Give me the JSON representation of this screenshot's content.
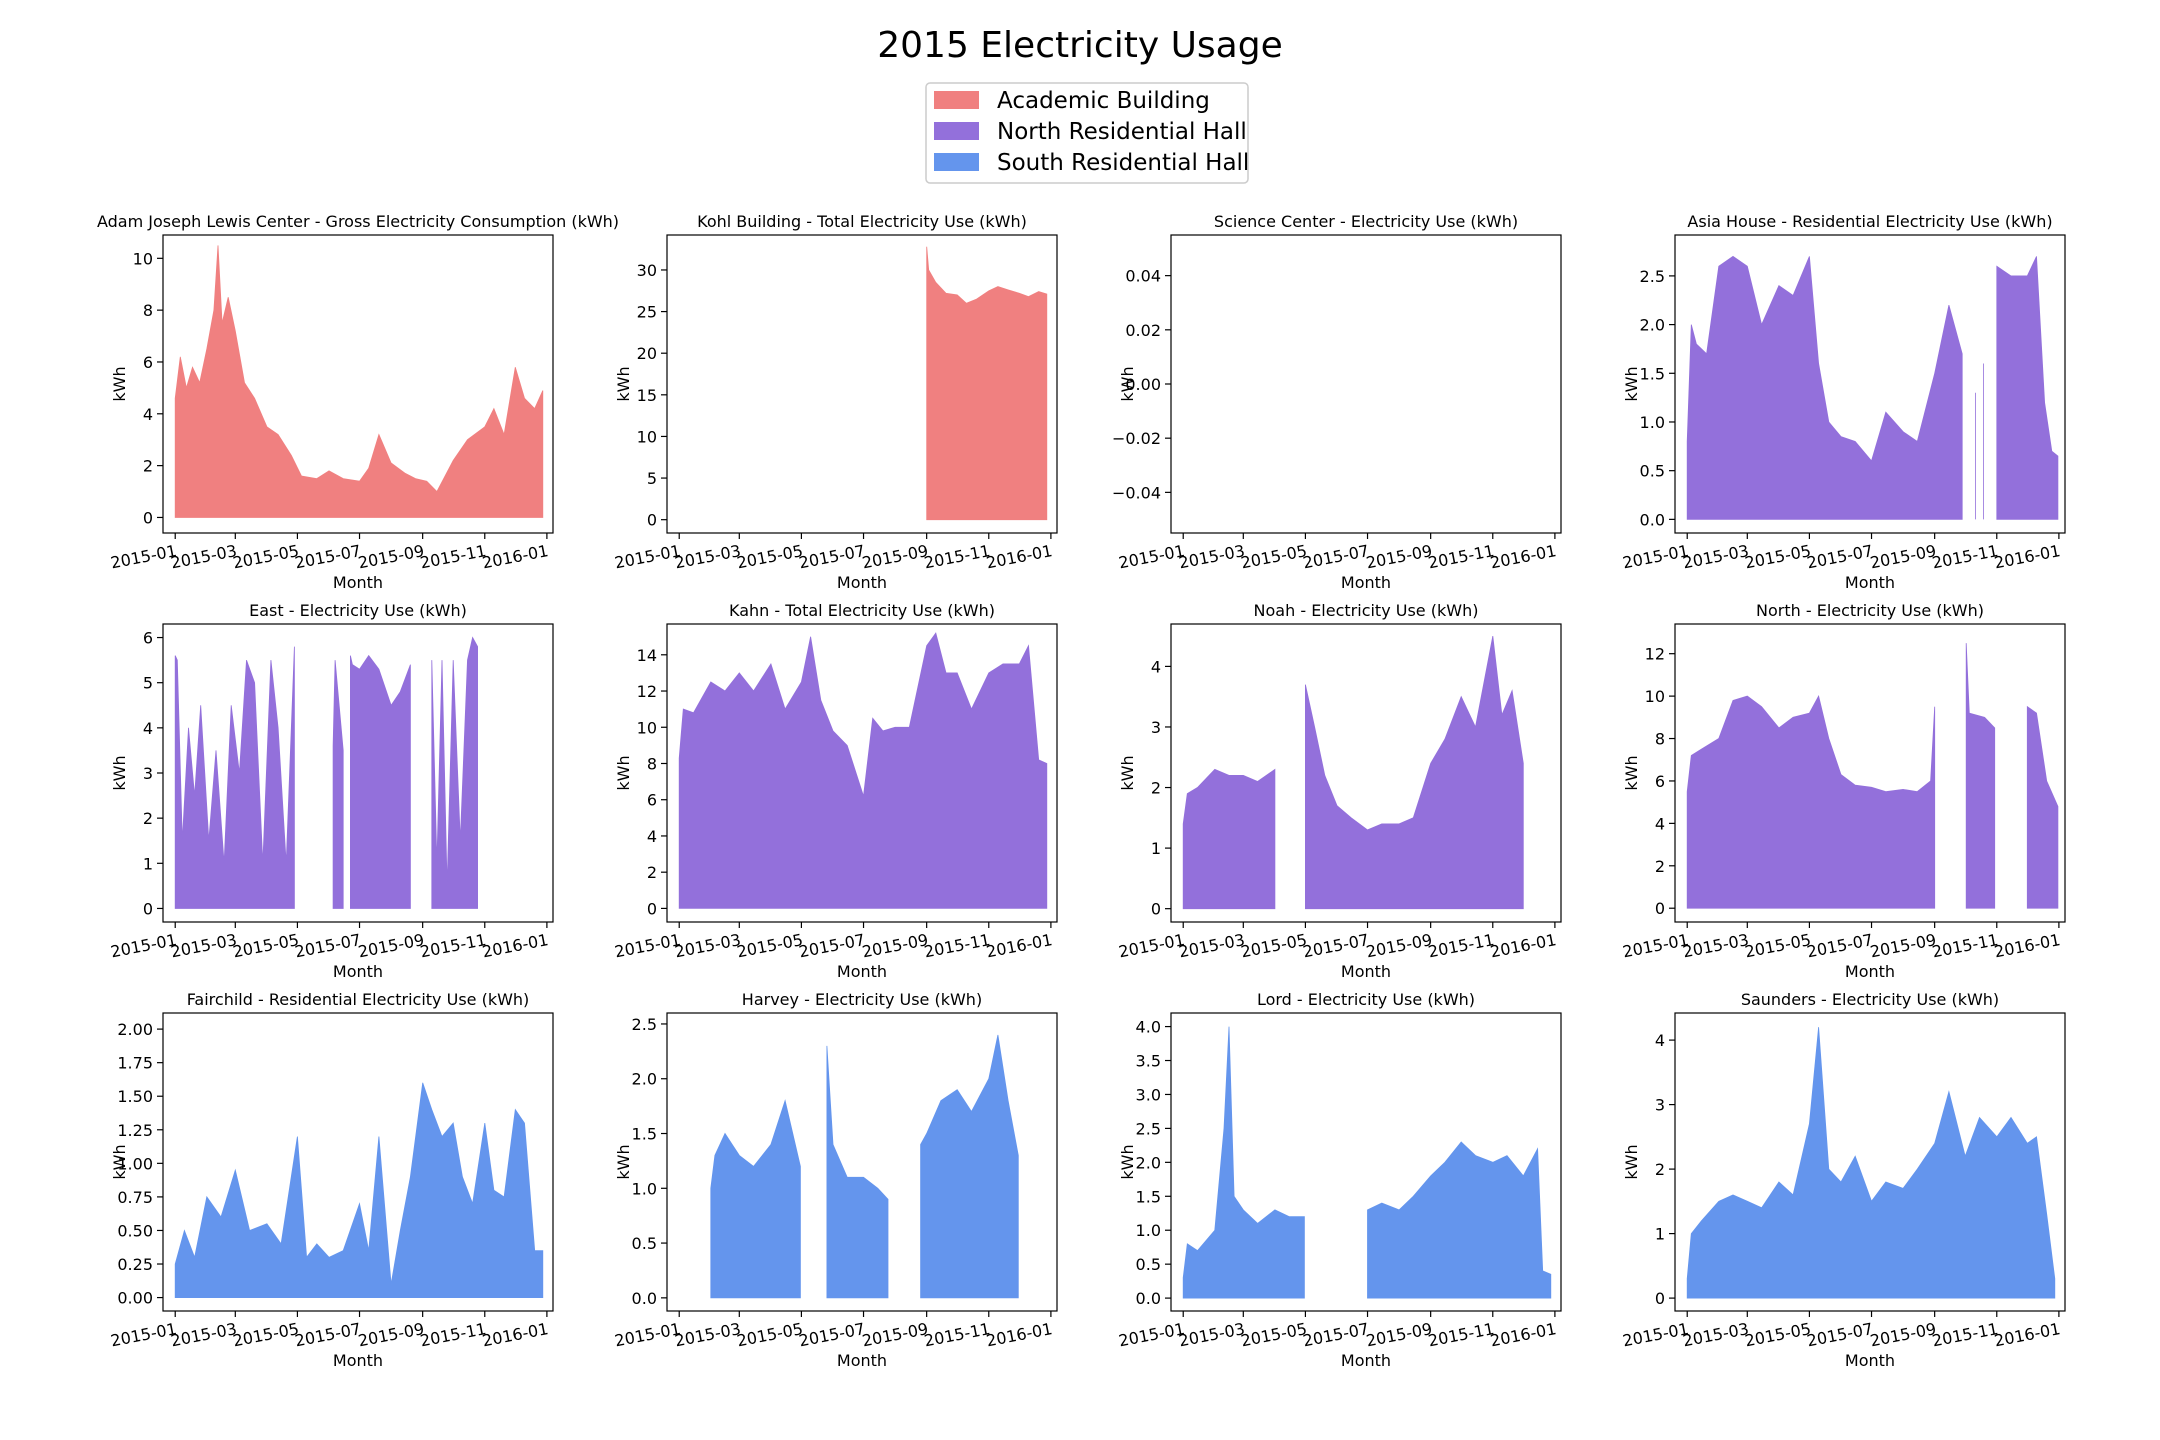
{
  "figure": {
    "title": "2015 Electricity Usage",
    "legend": [
      {
        "label": "Academic Building",
        "color": "#f08080"
      },
      {
        "label": "North Residential Hall",
        "color": "#9370db"
      },
      {
        "label": "South Residential Hall",
        "color": "#6495ed"
      }
    ],
    "legend_position": "top-center",
    "x_label": "Month",
    "y_label": "kWh",
    "x_tick_labels": [
      "2015-01",
      "2015-03",
      "2015-05",
      "2015-07",
      "2015-09",
      "2015-11",
      "2016-01"
    ],
    "x_tick_dates": [
      "2015-01-01",
      "2015-03-01",
      "2015-05-01",
      "2015-07-01",
      "2015-09-01",
      "2015-11-01",
      "2016-01-01"
    ],
    "x_range": [
      "2014-12-20",
      "2016-01-07"
    ]
  },
  "chart_data": [
    {
      "type": "area",
      "title": "Adam Joseph Lewis Center - Gross Electricity Consumption (kWh)",
      "group": "Academic Building",
      "color": "#f08080",
      "xlabel": "Month",
      "ylabel": "kWh",
      "ylim": [
        -0.6,
        10.9
      ],
      "yticks": [
        0,
        2,
        4,
        6,
        8,
        10
      ],
      "ytick_labels": [
        "0",
        "2",
        "4",
        "6",
        "8",
        "10"
      ],
      "x": [
        "2015-01-01",
        "2015-01-06",
        "2015-01-12",
        "2015-01-18",
        "2015-01-25",
        "2015-02-01",
        "2015-02-08",
        "2015-02-12",
        "2015-02-16",
        "2015-02-22",
        "2015-03-01",
        "2015-03-10",
        "2015-03-20",
        "2015-04-01",
        "2015-04-12",
        "2015-04-25",
        "2015-05-05",
        "2015-05-20",
        "2015-06-01",
        "2015-06-15",
        "2015-07-01",
        "2015-07-10",
        "2015-07-20",
        "2015-08-01",
        "2015-08-15",
        "2015-08-25",
        "2015-09-05",
        "2015-09-15",
        "2015-10-01",
        "2015-10-15",
        "2015-11-01",
        "2015-11-10",
        "2015-11-20",
        "2015-12-01",
        "2015-12-10",
        "2015-12-20",
        "2015-12-28"
      ],
      "y": [
        4.6,
        6.2,
        5.0,
        5.8,
        5.2,
        6.5,
        8.0,
        10.5,
        7.5,
        8.5,
        7.2,
        5.2,
        4.6,
        3.5,
        3.2,
        2.4,
        1.6,
        1.5,
        1.8,
        1.5,
        1.4,
        1.9,
        3.2,
        2.1,
        1.7,
        1.5,
        1.4,
        1.0,
        2.2,
        3.0,
        3.5,
        4.2,
        3.2,
        5.8,
        4.6,
        4.2,
        4.9
      ]
    },
    {
      "type": "area",
      "title": "Kohl Building - Total Electricity Use (kWh)",
      "group": "Academic Building",
      "color": "#f08080",
      "xlabel": "Month",
      "ylabel": "kWh",
      "ylim": [
        -1.6,
        34.2
      ],
      "yticks": [
        0,
        5,
        10,
        15,
        20,
        25,
        30
      ],
      "ytick_labels": [
        "0",
        "5",
        "10",
        "15",
        "20",
        "25",
        "30"
      ],
      "x": [
        "2015-09-01",
        "2015-09-03",
        "2015-09-10",
        "2015-09-20",
        "2015-10-01",
        "2015-10-10",
        "2015-10-20",
        "2015-11-01",
        "2015-11-10",
        "2015-11-20",
        "2015-12-01",
        "2015-12-10",
        "2015-12-20",
        "2015-12-28"
      ],
      "y": [
        32.8,
        30.0,
        28.5,
        27.2,
        27.0,
        26.0,
        26.5,
        27.5,
        28.0,
        27.6,
        27.2,
        26.8,
        27.4,
        27.1
      ]
    },
    {
      "type": "area",
      "title": "Science Center - Electricity Use (kWh)",
      "group": "Academic Building",
      "color": "#f08080",
      "xlabel": "Month",
      "ylabel": "kWh",
      "ylim": [
        -0.055,
        0.055
      ],
      "yticks": [
        -0.04,
        -0.02,
        0,
        0.02,
        0.04
      ],
      "ytick_labels": [
        "−0.04",
        "−0.02",
        "0.00",
        "0.02",
        "0.04"
      ],
      "x": [],
      "y": []
    },
    {
      "type": "area",
      "title": "Asia House - Residential Electricity Use (kWh)",
      "group": "North Residential Hall",
      "color": "#9370db",
      "xlabel": "Month",
      "ylabel": "kWh",
      "ylim": [
        -0.14,
        2.92
      ],
      "yticks": [
        0,
        0.5,
        1,
        1.5,
        2,
        2.5
      ],
      "ytick_labels": [
        "0.0",
        "0.5",
        "1.0",
        "1.5",
        "2.0",
        "2.5"
      ],
      "x": [
        "2015-01-01",
        "2015-01-05",
        "2015-01-10",
        "2015-01-20",
        "2015-02-01",
        "2015-02-15",
        "2015-03-01",
        "2015-03-15",
        "2015-04-01",
        "2015-04-15",
        "2015-05-01",
        "2015-05-10",
        "2015-05-20",
        "2015-06-01",
        "2015-06-15",
        "2015-07-01",
        "2015-07-15",
        "2015-08-01",
        "2015-08-15",
        "2015-09-01",
        "2015-09-15",
        "2015-09-28",
        "2015-10-08",
        "2015-10-09",
        "2015-10-11",
        "2015-10-12",
        "2015-10-18",
        "2015-10-19",
        "2015-10-22",
        "2015-10-23",
        "2015-11-01",
        "2015-11-15",
        "2015-12-01",
        "2015-12-10",
        "2015-12-18",
        "2015-12-25",
        "2015-12-31"
      ],
      "y": [
        0.8,
        2.0,
        1.8,
        1.7,
        2.6,
        2.7,
        2.6,
        2.0,
        2.4,
        2.3,
        2.7,
        1.6,
        1.0,
        0.85,
        0.8,
        0.6,
        1.1,
        0.9,
        0.8,
        1.5,
        2.2,
        1.7,
        null,
        null,
        1.3,
        null,
        null,
        1.6,
        null,
        null,
        2.6,
        2.5,
        2.5,
        2.7,
        1.2,
        0.7,
        0.65
      ]
    },
    {
      "type": "area",
      "title": "East - Electricity Use (kWh)",
      "group": "North Residential Hall",
      "color": "#9370db",
      "xlabel": "Month",
      "ylabel": "kWh",
      "ylim": [
        -0.3,
        6.3
      ],
      "yticks": [
        0,
        1,
        2,
        3,
        4,
        5,
        6
      ],
      "ytick_labels": [
        "0",
        "1",
        "2",
        "3",
        "4",
        "5",
        "6"
      ],
      "x": [
        "2015-01-01",
        "2015-01-03",
        "2015-01-08",
        "2015-01-14",
        "2015-01-20",
        "2015-01-26",
        "2015-02-03",
        "2015-02-10",
        "2015-02-18",
        "2015-02-25",
        "2015-03-05",
        "2015-03-12",
        "2015-03-20",
        "2015-03-28",
        "2015-04-05",
        "2015-04-12",
        "2015-04-20",
        "2015-04-28",
        "2015-05-05",
        "2015-05-20",
        "2015-06-05",
        "2015-06-07",
        "2015-06-15",
        "2015-06-20",
        "2015-06-22",
        "2015-06-24",
        "2015-07-01",
        "2015-07-10",
        "2015-07-20",
        "2015-08-01",
        "2015-08-10",
        "2015-08-20",
        "2015-09-01",
        "2015-09-10",
        "2015-09-15",
        "2015-09-20",
        "2015-09-25",
        "2015-10-01",
        "2015-10-08",
        "2015-10-15",
        "2015-10-20",
        "2015-10-25",
        "2015-11-05"
      ],
      "y": [
        5.6,
        5.5,
        1.5,
        4.0,
        2.5,
        4.5,
        1.5,
        3.5,
        1.0,
        4.5,
        3.0,
        5.5,
        5.0,
        1.0,
        5.5,
        4.0,
        1.0,
        5.8,
        null,
        null,
        3.6,
        5.5,
        3.5,
        null,
        5.6,
        5.4,
        5.3,
        5.6,
        5.3,
        4.5,
        4.8,
        5.4,
        null,
        5.5,
        1.0,
        5.5,
        0.5,
        5.5,
        1.5,
        5.5,
        6.0,
        5.8,
        null
      ]
    },
    {
      "type": "area",
      "title": "Kahn - Total Electricity Use (kWh)",
      "group": "North Residential Hall",
      "color": "#9370db",
      "xlabel": "Month",
      "ylabel": "kWh",
      "ylim": [
        -0.75,
        15.7
      ],
      "yticks": [
        0,
        2,
        4,
        6,
        8,
        10,
        12,
        14
      ],
      "ytick_labels": [
        "0",
        "2",
        "4",
        "6",
        "8",
        "10",
        "12",
        "14"
      ],
      "x": [
        "2015-01-01",
        "2015-01-05",
        "2015-01-15",
        "2015-02-01",
        "2015-02-15",
        "2015-03-01",
        "2015-03-15",
        "2015-04-01",
        "2015-04-15",
        "2015-05-01",
        "2015-05-10",
        "2015-05-20",
        "2015-06-01",
        "2015-06-15",
        "2015-07-01",
        "2015-07-10",
        "2015-07-20",
        "2015-08-01",
        "2015-08-15",
        "2015-09-01",
        "2015-09-10",
        "2015-09-20",
        "2015-10-01",
        "2015-10-15",
        "2015-11-01",
        "2015-11-15",
        "2015-12-01",
        "2015-12-10",
        "2015-12-20",
        "2015-12-28"
      ],
      "y": [
        8.3,
        11.0,
        10.8,
        12.5,
        12.0,
        13.0,
        12.0,
        13.5,
        11.0,
        12.5,
        15.0,
        11.5,
        9.8,
        9.0,
        6.2,
        10.5,
        9.8,
        10.0,
        10.0,
        14.5,
        15.2,
        13.0,
        13.0,
        11.0,
        13.0,
        13.5,
        13.5,
        14.5,
        8.2,
        8.0
      ]
    },
    {
      "type": "area",
      "title": "Noah - Electricity Use (kWh)",
      "group": "North Residential Hall",
      "color": "#9370db",
      "xlabel": "Month",
      "ylabel": "kWh",
      "ylim": [
        -0.22,
        4.7
      ],
      "yticks": [
        0,
        1,
        2,
        3,
        4
      ],
      "ytick_labels": [
        "0",
        "1",
        "2",
        "3",
        "4"
      ],
      "x": [
        "2015-01-01",
        "2015-01-05",
        "2015-01-15",
        "2015-02-01",
        "2015-02-15",
        "2015-03-01",
        "2015-03-15",
        "2015-04-01",
        "2015-04-02",
        "2015-04-30",
        "2015-05-01",
        "2015-05-10",
        "2015-05-20",
        "2015-06-01",
        "2015-06-15",
        "2015-07-01",
        "2015-07-15",
        "2015-08-01",
        "2015-08-15",
        "2015-09-01",
        "2015-09-15",
        "2015-10-01",
        "2015-10-15",
        "2015-11-01",
        "2015-11-10",
        "2015-11-20",
        "2015-12-01",
        "2015-12-02"
      ],
      "y": [
        1.4,
        1.9,
        2.0,
        2.3,
        2.2,
        2.2,
        2.1,
        2.3,
        null,
        null,
        3.7,
        3.0,
        2.2,
        1.7,
        1.5,
        1.3,
        1.4,
        1.4,
        1.5,
        2.4,
        2.8,
        3.5,
        3.0,
        4.5,
        3.2,
        3.6,
        2.4,
        null
      ]
    },
    {
      "type": "area",
      "title": "North - Electricity Use (kWh)",
      "group": "North Residential Hall",
      "color": "#9370db",
      "xlabel": "Month",
      "ylabel": "kWh",
      "ylim": [
        -0.65,
        13.4
      ],
      "yticks": [
        0,
        2,
        4,
        6,
        8,
        10,
        12
      ],
      "ytick_labels": [
        "0",
        "2",
        "4",
        "6",
        "8",
        "10",
        "12"
      ],
      "x": [
        "2015-01-01",
        "2015-01-05",
        "2015-01-15",
        "2015-02-01",
        "2015-02-15",
        "2015-03-01",
        "2015-03-15",
        "2015-04-01",
        "2015-04-15",
        "2015-05-01",
        "2015-05-10",
        "2015-05-20",
        "2015-06-01",
        "2015-06-15",
        "2015-07-01",
        "2015-07-15",
        "2015-08-01",
        "2015-08-15",
        "2015-08-28",
        "2015-09-01",
        "2015-09-02",
        "2015-10-01",
        "2015-10-02",
        "2015-10-05",
        "2015-10-20",
        "2015-10-30",
        "2015-11-01",
        "2015-11-30",
        "2015-12-01",
        "2015-12-10",
        "2015-12-20",
        "2015-12-31"
      ],
      "y": [
        5.5,
        7.2,
        7.5,
        8.0,
        9.8,
        10.0,
        9.5,
        8.5,
        9.0,
        9.2,
        10.0,
        8.0,
        6.3,
        5.8,
        5.7,
        5.5,
        5.6,
        5.5,
        6.0,
        9.5,
        null,
        null,
        12.5,
        9.2,
        9.0,
        8.5,
        null,
        null,
        9.5,
        9.2,
        6.0,
        4.8
      ]
    },
    {
      "type": "area",
      "title": "Fairchild - Residential Electricity Use (kWh)",
      "group": "South Residential Hall",
      "color": "#6495ed",
      "xlabel": "Month",
      "ylabel": "kWh",
      "ylim": [
        -0.1,
        2.12
      ],
      "yticks": [
        0,
        0.25,
        0.5,
        0.75,
        1,
        1.25,
        1.5,
        1.75,
        2
      ],
      "ytick_labels": [
        "0.00",
        "0.25",
        "0.50",
        "0.75",
        "1.00",
        "1.25",
        "1.50",
        "1.75",
        "2.00"
      ],
      "x": [
        "2015-01-01",
        "2015-01-10",
        "2015-01-20",
        "2015-02-01",
        "2015-02-15",
        "2015-03-01",
        "2015-03-15",
        "2015-04-01",
        "2015-04-15",
        "2015-05-01",
        "2015-05-10",
        "2015-05-20",
        "2015-06-01",
        "2015-06-15",
        "2015-07-01",
        "2015-07-10",
        "2015-07-20",
        "2015-08-01",
        "2015-08-10",
        "2015-08-20",
        "2015-09-01",
        "2015-09-10",
        "2015-09-20",
        "2015-10-01",
        "2015-10-10",
        "2015-10-20",
        "2015-11-01",
        "2015-11-10",
        "2015-11-20",
        "2015-12-01",
        "2015-12-10",
        "2015-12-20",
        "2015-12-28"
      ],
      "y": [
        0.25,
        0.5,
        0.3,
        0.75,
        0.6,
        0.95,
        0.5,
        0.55,
        0.4,
        1.2,
        0.3,
        0.4,
        0.3,
        0.35,
        0.7,
        0.35,
        1.2,
        0.1,
        0.5,
        0.9,
        1.6,
        1.4,
        1.2,
        1.3,
        0.9,
        0.7,
        1.3,
        0.8,
        0.75,
        1.4,
        1.3,
        0.35,
        0.35
      ]
    },
    {
      "type": "area",
      "title": "Harvey - Electricity Use (kWh)",
      "group": "South Residential Hall",
      "color": "#6495ed",
      "xlabel": "Month",
      "ylabel": "kWh",
      "ylim": [
        -0.12,
        2.6
      ],
      "yticks": [
        0,
        0.5,
        1,
        1.5,
        2,
        2.5
      ],
      "ytick_labels": [
        "0.0",
        "0.5",
        "1.0",
        "1.5",
        "2.0",
        "2.5"
      ],
      "x": [
        "2015-02-01",
        "2015-02-05",
        "2015-02-15",
        "2015-03-01",
        "2015-03-15",
        "2015-04-01",
        "2015-04-15",
        "2015-04-30",
        "2015-05-01",
        "2015-05-25",
        "2015-05-26",
        "2015-06-01",
        "2015-06-15",
        "2015-07-01",
        "2015-07-15",
        "2015-07-25",
        "2015-07-26",
        "2015-08-25",
        "2015-08-26",
        "2015-09-01",
        "2015-09-15",
        "2015-10-01",
        "2015-10-15",
        "2015-11-01",
        "2015-11-10",
        "2015-11-20",
        "2015-11-30",
        "2015-12-01"
      ],
      "y": [
        1.0,
        1.3,
        1.5,
        1.3,
        1.2,
        1.4,
        1.8,
        1.2,
        null,
        null,
        2.3,
        1.4,
        1.1,
        1.1,
        1.0,
        0.9,
        null,
        null,
        1.4,
        1.5,
        1.8,
        1.9,
        1.7,
        2.0,
        2.4,
        1.8,
        1.3,
        null
      ]
    },
    {
      "type": "area",
      "title": "Lord - Electricity Use (kWh)",
      "group": "South Residential Hall",
      "color": "#6495ed",
      "xlabel": "Month",
      "ylabel": "kWh",
      "ylim": [
        -0.19,
        4.2
      ],
      "yticks": [
        0,
        0.5,
        1,
        1.5,
        2,
        2.5,
        3,
        3.5,
        4
      ],
      "ytick_labels": [
        "0.0",
        "0.5",
        "1.0",
        "1.5",
        "2.0",
        "2.5",
        "3.0",
        "3.5",
        "4.0"
      ],
      "x": [
        "2015-01-01",
        "2015-01-05",
        "2015-01-15",
        "2015-02-01",
        "2015-02-10",
        "2015-02-15",
        "2015-02-20",
        "2015-03-01",
        "2015-03-15",
        "2015-04-01",
        "2015-04-15",
        "2015-04-30",
        "2015-05-01",
        "2015-06-30",
        "2015-07-01",
        "2015-07-15",
        "2015-08-01",
        "2015-08-15",
        "2015-09-01",
        "2015-09-15",
        "2015-10-01",
        "2015-10-15",
        "2015-11-01",
        "2015-11-15",
        "2015-12-01",
        "2015-12-15",
        "2015-12-20",
        "2015-12-28"
      ],
      "y": [
        0.3,
        0.8,
        0.7,
        1.0,
        2.5,
        4.0,
        1.5,
        1.3,
        1.1,
        1.3,
        1.2,
        1.2,
        null,
        null,
        1.3,
        1.4,
        1.3,
        1.5,
        1.8,
        2.0,
        2.3,
        2.1,
        2.0,
        2.1,
        1.8,
        2.2,
        0.4,
        0.35
      ]
    },
    {
      "type": "area",
      "title": "Saunders - Electricity Use (kWh)",
      "group": "South Residential Hall",
      "color": "#6495ed",
      "xlabel": "Month",
      "ylabel": "kWh",
      "ylim": [
        -0.2,
        4.42
      ],
      "yticks": [
        0,
        1,
        2,
        3,
        4
      ],
      "ytick_labels": [
        "0",
        "1",
        "2",
        "3",
        "4"
      ],
      "x": [
        "2015-01-01",
        "2015-01-05",
        "2015-01-15",
        "2015-02-01",
        "2015-02-15",
        "2015-03-01",
        "2015-03-15",
        "2015-04-01",
        "2015-04-15",
        "2015-05-01",
        "2015-05-10",
        "2015-05-20",
        "2015-06-01",
        "2015-06-15",
        "2015-07-01",
        "2015-07-15",
        "2015-08-01",
        "2015-08-15",
        "2015-09-01",
        "2015-09-15",
        "2015-10-01",
        "2015-10-15",
        "2015-11-01",
        "2015-11-15",
        "2015-12-01",
        "2015-12-10",
        "2015-12-20",
        "2015-12-28"
      ],
      "y": [
        0.3,
        1.0,
        1.2,
        1.5,
        1.6,
        1.5,
        1.4,
        1.8,
        1.6,
        2.7,
        4.2,
        2.0,
        1.8,
        2.2,
        1.5,
        1.8,
        1.7,
        2.0,
        2.4,
        3.2,
        2.2,
        2.8,
        2.5,
        2.8,
        2.4,
        2.5,
        1.3,
        0.3
      ]
    }
  ]
}
